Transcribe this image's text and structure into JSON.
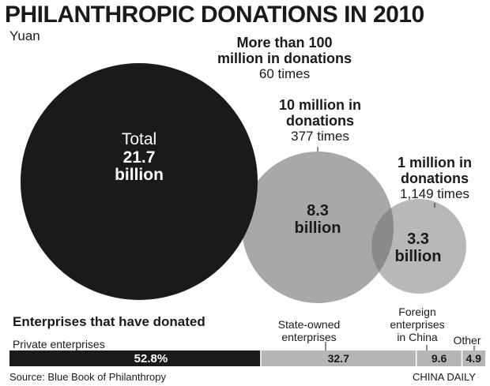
{
  "title": "PHILANTHROPIC DONATIONS IN 2010",
  "unit": "Yuan",
  "chart_data": [
    {
      "type": "bubble",
      "series": [
        {
          "name": "Total",
          "value_billion": 21.7,
          "label_lines": [
            "21.7",
            "billion"
          ],
          "category_lines": [],
          "count": ""
        },
        {
          "name": "10 million in donations",
          "value_billion": 8.3,
          "label_lines": [
            "8.3",
            "billion"
          ],
          "category_lines": [
            "10 million in",
            "donations"
          ],
          "count": "377 times"
        },
        {
          "name": "1 million in donations",
          "value_billion": 3.3,
          "label_lines": [
            "3.3",
            "billion"
          ],
          "category_lines": [
            "1 million in",
            "donations"
          ],
          "count": "1,149 times"
        }
      ],
      "extra_label": {
        "category_lines": [
          "More than 100",
          "million in donations"
        ],
        "count": "60 times"
      }
    },
    {
      "type": "bar",
      "stacked": true,
      "title": "Enterprises that have donated",
      "unit": "%",
      "categories": [
        "Private enterprises",
        "State-owned enterprises",
        "Foreign enterprises in China",
        "Other"
      ],
      "values": [
        52.8,
        32.7,
        9.6,
        4.9
      ],
      "value_labels": [
        "52.8%",
        "32.7",
        "9.6",
        "4.9"
      ],
      "xlim": [
        0,
        100
      ]
    }
  ],
  "bubble_text": {
    "total_word": "Total",
    "total_value": "21.7",
    "total_unit": "billion",
    "b2_value": "8.3",
    "b2_unit": "billion",
    "b3_value": "3.3",
    "b3_unit": "billion"
  },
  "labels": {
    "over100_line1": "More than 100",
    "over100_line2": "million in donations",
    "over100_count": "60 times",
    "ten_line1": "10 million in",
    "ten_line2": "donations",
    "ten_count": "377 times",
    "one_line1": "1 million in",
    "one_line2": "donations",
    "one_count": "1,149 times"
  },
  "bar_labels": {
    "section_title": "Enterprises that have donated",
    "private": "Private enterprises",
    "state_line1": "State-owned",
    "state_line2": "enterprises",
    "foreign_line1": "Foreign",
    "foreign_line2": "enterprises",
    "foreign_line3": "in China",
    "other": "Other"
  },
  "colors": {
    "dark": "#1a1a1a",
    "gray": "#a8a8a8",
    "gray_light": "#b8b8b8",
    "overlap": "#8a8a8a",
    "bar_gray": "#b5b5b5",
    "divider": "#ffffff"
  },
  "footer": {
    "source": "Source: Blue Book of Philanthropy",
    "credit": "CHINA DAILY"
  }
}
